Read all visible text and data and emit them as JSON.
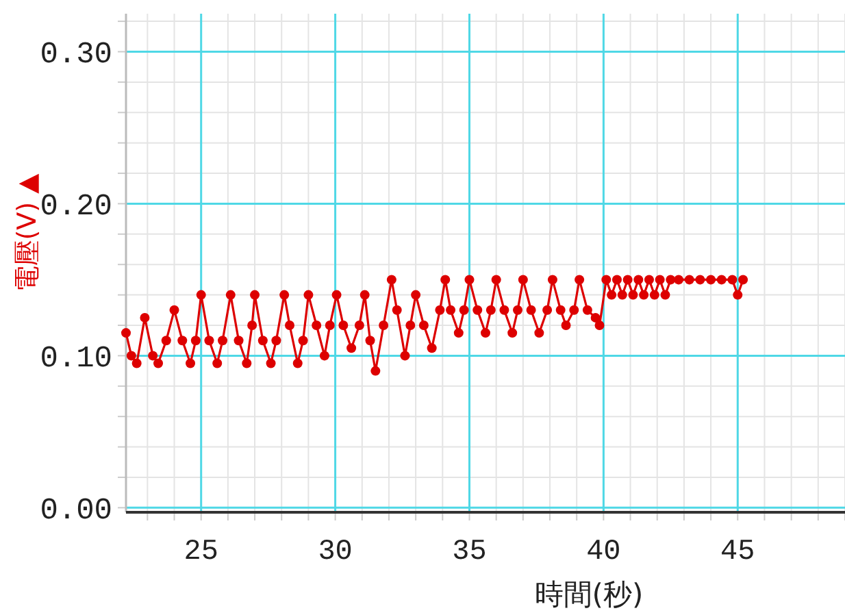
{
  "chart_data": {
    "type": "line",
    "xlabel": "時間(秒)",
    "ylabel": "電壓(V) ▲",
    "xlim": [
      22.2,
      49.0
    ],
    "ylim": [
      -0.003,
      0.325
    ],
    "xticks": [
      25,
      30,
      35,
      40,
      45
    ],
    "yticks": [
      {
        "value": 0,
        "label": "0.00"
      },
      {
        "value": 0.1,
        "label": "0.10"
      },
      {
        "value": 0.2,
        "label": "0.20"
      },
      {
        "value": 0.3,
        "label": "0.30"
      }
    ],
    "grid": true,
    "marker": "circle",
    "line_style": "solid",
    "series": [
      {
        "color": "#dd0000",
        "x": [
          22.2,
          22.4,
          22.6,
          22.9,
          23.2,
          23.4,
          23.7,
          24.0,
          24.3,
          24.6,
          24.8,
          25.0,
          25.3,
          25.6,
          25.8,
          26.1,
          26.4,
          26.7,
          26.9,
          27.0,
          27.3,
          27.6,
          27.8,
          28.1,
          28.3,
          28.6,
          28.8,
          29.0,
          29.3,
          29.6,
          29.8,
          30.05,
          30.3,
          30.6,
          30.9,
          31.1,
          31.3,
          31.5,
          31.8,
          32.1,
          32.3,
          32.6,
          32.8,
          33.0,
          33.3,
          33.6,
          33.9,
          34.1,
          34.3,
          34.6,
          34.8,
          35.0,
          35.3,
          35.6,
          35.8,
          36.0,
          36.3,
          36.6,
          36.8,
          37.0,
          37.3,
          37.6,
          37.9,
          38.1,
          38.4,
          38.6,
          38.9,
          39.1,
          39.4,
          39.7,
          39.85,
          40.1,
          40.3,
          40.5,
          40.7,
          40.9,
          41.1,
          41.3,
          41.5,
          41.7,
          41.9,
          42.1,
          42.3,
          42.5,
          42.8,
          43.2,
          43.6,
          44.0,
          44.4,
          44.8,
          45.0,
          45.2
        ],
        "values": [
          0.115,
          0.1,
          0.095,
          0.125,
          0.1,
          0.095,
          0.11,
          0.13,
          0.11,
          0.095,
          0.11,
          0.14,
          0.11,
          0.095,
          0.11,
          0.14,
          0.11,
          0.095,
          0.12,
          0.14,
          0.11,
          0.095,
          0.11,
          0.14,
          0.12,
          0.095,
          0.11,
          0.14,
          0.12,
          0.1,
          0.12,
          0.14,
          0.12,
          0.105,
          0.12,
          0.14,
          0.11,
          0.09,
          0.12,
          0.15,
          0.13,
          0.1,
          0.12,
          0.14,
          0.12,
          0.105,
          0.13,
          0.15,
          0.13,
          0.115,
          0.13,
          0.15,
          0.13,
          0.115,
          0.13,
          0.15,
          0.13,
          0.115,
          0.13,
          0.15,
          0.13,
          0.115,
          0.13,
          0.15,
          0.13,
          0.12,
          0.13,
          0.15,
          0.13,
          0.125,
          0.12,
          0.15,
          0.14,
          0.15,
          0.14,
          0.15,
          0.14,
          0.15,
          0.14,
          0.15,
          0.14,
          0.15,
          0.14,
          0.15,
          0.15,
          0.15,
          0.15,
          0.15,
          0.15,
          0.15,
          0.14,
          0.15
        ]
      }
    ]
  }
}
